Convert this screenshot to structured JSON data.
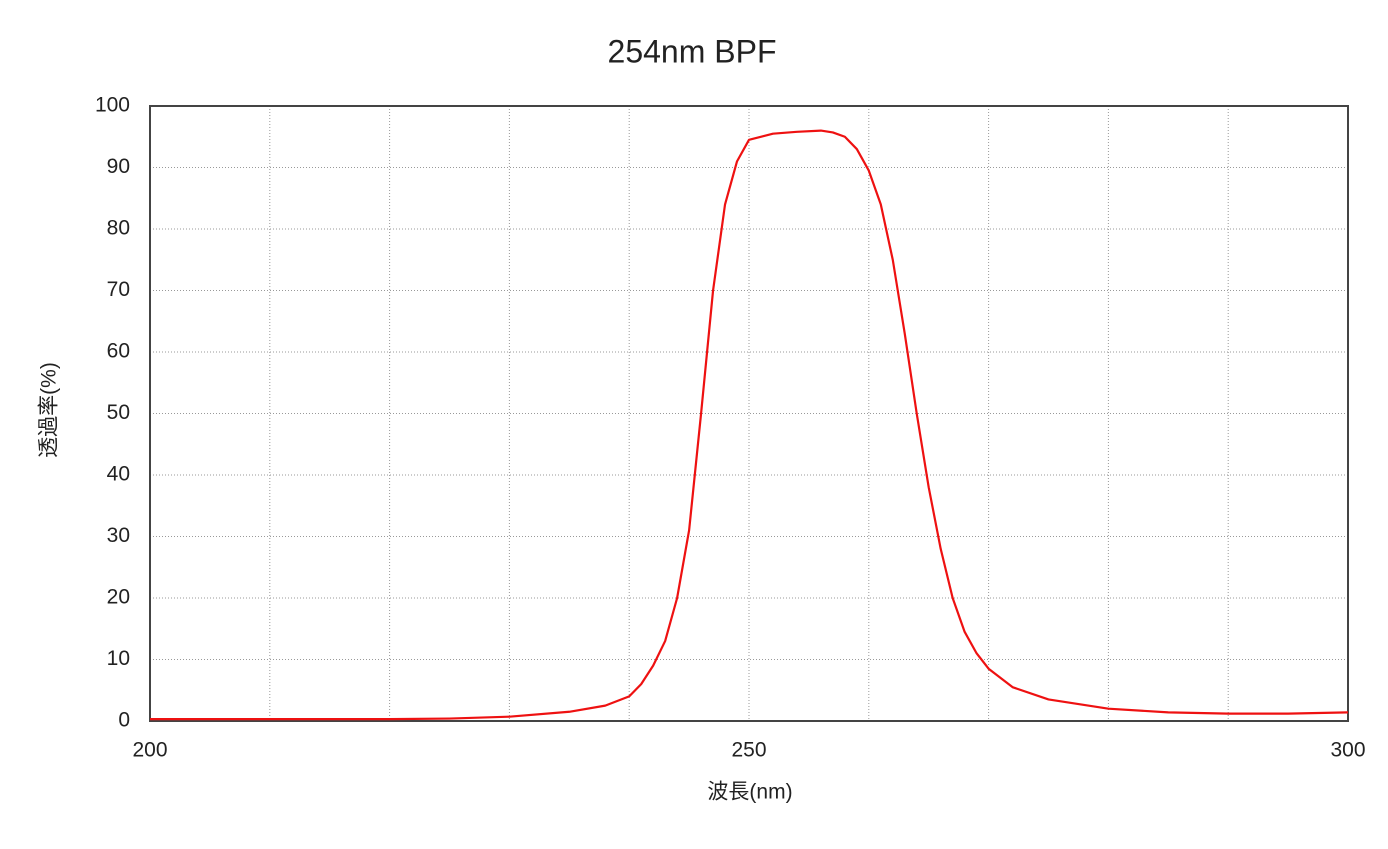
{
  "chart_data": {
    "type": "line",
    "title": "254nm BPF",
    "x_label": "波長(nm)",
    "y_label": "透過率(%)",
    "x": [
      200,
      210,
      220,
      225,
      230,
      235,
      238,
      240,
      241,
      242,
      243,
      244,
      245,
      246,
      247,
      248,
      249,
      250,
      252,
      254,
      256,
      257,
      258,
      259,
      260,
      261,
      262,
      263,
      264,
      265,
      266,
      267,
      268,
      269,
      270,
      272,
      275,
      280,
      285,
      290,
      295,
      300
    ],
    "series": [
      {
        "name": "254nm BPF",
        "color": "#ee1111",
        "values": [
          0.3,
          0.3,
          0.3,
          0.4,
          0.7,
          1.5,
          2.5,
          4,
          6,
          9,
          13,
          20,
          31,
          50,
          70,
          84,
          91,
          94.5,
          95.5,
          95.8,
          96,
          95.7,
          95,
          93,
          89.5,
          84,
          75,
          63,
          50,
          38,
          28,
          20,
          14.5,
          11,
          8.5,
          5.5,
          3.5,
          2,
          1.4,
          1.2,
          1.2,
          1.4
        ]
      }
    ],
    "xlim": [
      200,
      300
    ],
    "xticks": [
      200,
      250,
      300
    ],
    "x_minor_ticks": [
      210,
      220,
      230,
      240,
      250,
      260,
      270,
      280,
      290
    ],
    "ylim": [
      0,
      100
    ],
    "yticks": [
      0,
      10,
      20,
      30,
      40,
      50,
      60,
      70,
      80,
      90,
      100
    ],
    "grid": true
  }
}
